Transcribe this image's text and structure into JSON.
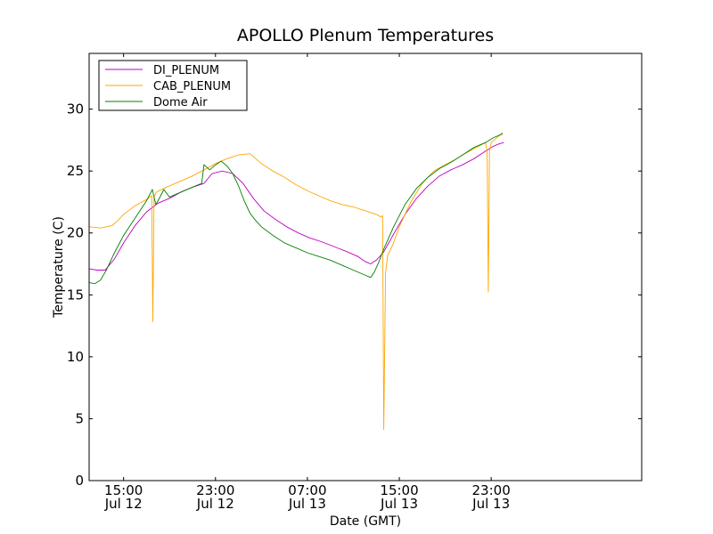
{
  "chart_data": {
    "type": "line",
    "title": "APOLLO Plenum Temperatures",
    "xlabel": "Date (GMT)",
    "ylabel": "Temperature (C)",
    "xlim": [
      12,
      60.1
    ],
    "ylim": [
      0,
      34.5
    ],
    "grid": false,
    "legend_position": "top-left",
    "x_ticks": [
      {
        "value": 15,
        "line1": "15:00",
        "line2": "Jul 12"
      },
      {
        "value": 23,
        "line1": "23:00",
        "line2": "Jul 12"
      },
      {
        "value": 31,
        "line1": "07:00",
        "line2": "Jul 13"
      },
      {
        "value": 39,
        "line1": "15:00",
        "line2": "Jul 13"
      },
      {
        "value": 47,
        "line1": "23:00",
        "line2": "Jul 13"
      }
    ],
    "y_ticks": [
      0,
      5,
      10,
      15,
      20,
      25,
      30
    ],
    "x_unit": "hours since Jul 12 00:00 GMT",
    "series": [
      {
        "name": "DI_PLENUM",
        "color": "#bf00bf",
        "x": [
          12.0,
          12.7,
          13.4,
          14.2,
          15.0,
          16.0,
          17.0,
          18.0,
          19.0,
          20.0,
          21.0,
          22.0,
          22.7,
          23.6,
          24.5,
          25.4,
          26.3,
          27.2,
          28.2,
          29.2,
          30.2,
          31.2,
          32.2,
          33.3,
          34.4,
          35.4,
          36.0,
          36.5,
          37.0,
          37.6,
          38.5,
          39.5,
          40.5,
          41.5,
          42.5,
          43.5,
          44.5,
          45.5,
          46.5,
          47.2,
          47.7,
          48.1
        ],
        "y": [
          17.1,
          17.0,
          17.0,
          17.9,
          19.2,
          20.6,
          21.7,
          22.4,
          22.8,
          23.3,
          23.7,
          24.0,
          24.8,
          25.0,
          24.8,
          24.0,
          22.8,
          21.8,
          21.1,
          20.5,
          20.0,
          19.6,
          19.3,
          18.9,
          18.5,
          18.1,
          17.7,
          17.5,
          17.8,
          18.4,
          19.9,
          21.5,
          22.8,
          23.8,
          24.6,
          25.1,
          25.5,
          26.0,
          26.6,
          27.0,
          27.2,
          27.3
        ]
      },
      {
        "name": "CAB_PLENUM",
        "color": "#ffa500",
        "x": [
          12.0,
          13.0,
          14.0,
          14.5,
          15.0,
          16.0,
          17.0,
          17.45,
          17.55,
          17.65,
          17.85,
          18.5,
          20.0,
          21.0,
          22.0,
          23.0,
          24.0,
          25.0,
          26.0,
          27.0,
          28.0,
          29.0,
          30.0,
          31.0,
          32.0,
          33.0,
          34.0,
          35.0,
          36.0,
          37.0,
          37.4,
          37.55,
          37.65,
          37.8,
          38.0,
          38.5,
          39.0,
          40.0,
          41.0,
          42.0,
          43.0,
          44.0,
          44.5,
          45.5,
          46.5,
          46.65,
          46.75,
          46.85,
          47.0,
          47.5,
          48.0
        ],
        "y": [
          20.5,
          20.4,
          20.6,
          21.0,
          21.5,
          22.2,
          22.7,
          23.0,
          12.8,
          22.9,
          23.3,
          23.6,
          24.2,
          24.6,
          25.1,
          25.6,
          26.0,
          26.3,
          26.4,
          25.6,
          25.0,
          24.5,
          23.9,
          23.4,
          23.0,
          22.6,
          22.3,
          22.1,
          21.8,
          21.5,
          21.3,
          21.4,
          4.1,
          16.8,
          18.2,
          19.2,
          20.5,
          22.5,
          24.0,
          25.0,
          25.5,
          26.0,
          26.3,
          26.8,
          27.3,
          26.5,
          15.2,
          26.6,
          27.3,
          27.7,
          28.1
        ]
      },
      {
        "name": "Dome Air",
        "color": "#008000",
        "x": [
          12.0,
          12.5,
          13.0,
          13.5,
          14.2,
          15.0,
          16.0,
          17.0,
          17.5,
          17.8,
          18.0,
          18.5,
          19.0,
          20.0,
          21.0,
          21.8,
          22.0,
          22.5,
          23.0,
          23.5,
          24.0,
          24.5,
          25.0,
          25.5,
          26.0,
          26.5,
          27.0,
          28.0,
          29.0,
          30.0,
          31.0,
          32.0,
          33.0,
          34.0,
          35.0,
          36.0,
          36.5,
          36.8,
          37.2,
          37.6,
          38.5,
          39.5,
          40.5,
          41.5,
          42.5,
          43.5,
          44.5,
          45.5,
          46.5,
          47.2,
          48.0
        ],
        "y": [
          16.0,
          15.9,
          16.2,
          17.0,
          18.4,
          19.8,
          21.2,
          22.6,
          23.5,
          22.3,
          22.6,
          23.5,
          22.9,
          23.3,
          23.7,
          24.0,
          25.5,
          25.1,
          25.5,
          25.8,
          25.4,
          24.8,
          23.8,
          22.6,
          21.6,
          21.0,
          20.5,
          19.8,
          19.2,
          18.8,
          18.4,
          18.1,
          17.8,
          17.4,
          17.0,
          16.6,
          16.4,
          16.8,
          17.6,
          18.6,
          20.5,
          22.3,
          23.6,
          24.5,
          25.2,
          25.7,
          26.3,
          26.9,
          27.3,
          27.7,
          28.0
        ]
      }
    ]
  }
}
